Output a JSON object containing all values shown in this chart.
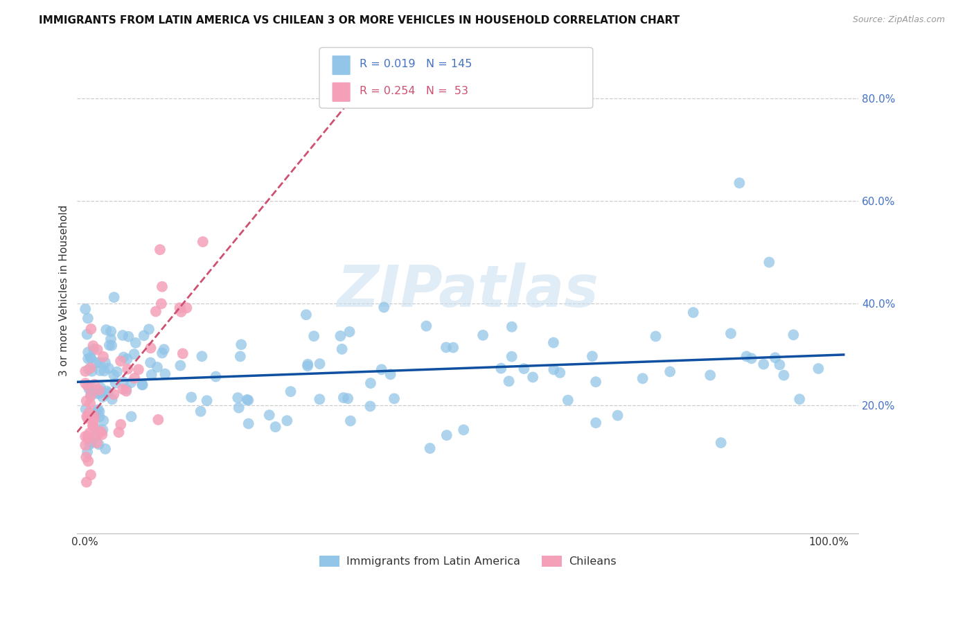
{
  "title": "IMMIGRANTS FROM LATIN AMERICA VS CHILEAN 3 OR MORE VEHICLES IN HOUSEHOLD CORRELATION CHART",
  "source": "Source: ZipAtlas.com",
  "ylabel": "3 or more Vehicles in Household",
  "watermark": "ZIPatlas",
  "blue_R": 0.019,
  "blue_N": 145,
  "pink_R": 0.254,
  "pink_N": 53,
  "blue_color": "#92C5E8",
  "pink_color": "#F4A0B8",
  "blue_line_color": "#1050A0",
  "pink_line_color": "#D05070",
  "legend_label_blue": "Immigrants from Latin America",
  "legend_label_pink": "Chileans",
  "ytick_vals": [
    0.2,
    0.4,
    0.6,
    0.8
  ],
  "ytick_labels": [
    "20.0%",
    "40.0%",
    "60.0%",
    "80.0%"
  ],
  "background_color": "#ffffff",
  "grid_color": "#cccccc",
  "title_fontsize": 11,
  "source_fontsize": 9,
  "axis_label_fontsize": 11,
  "tick_fontsize": 11
}
